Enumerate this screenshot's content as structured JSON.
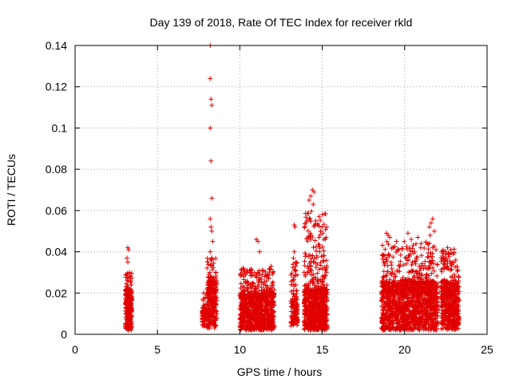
{
  "chart_data": {
    "type": "scatter",
    "title": "Day 139 of 2018, Rate Of TEC Index for receiver rkld",
    "xlabel": "GPS time / hours",
    "ylabel": "ROTI / TECUs",
    "xlim": [
      0,
      25
    ],
    "ylim": [
      0,
      0.14
    ],
    "xticks": [
      0,
      5,
      10,
      15,
      20,
      25
    ],
    "yticks": [
      0,
      0.02,
      0.04,
      0.06,
      0.08,
      0.1,
      0.12,
      0.14
    ],
    "xtick_labels": [
      "0",
      "5",
      "10",
      "15",
      "20",
      "25"
    ],
    "ytick_labels": [
      "0",
      "0.02",
      "0.04",
      "0.06",
      "0.08",
      "0.1",
      "0.12",
      "0.14"
    ],
    "grid": true,
    "marker": "+",
    "color": "#e00000",
    "clusters": [
      {
        "x": [
          3.05,
          3.45
        ],
        "dense": [
          0.002,
          0.022
        ],
        "mid": [
          0.015,
          0.03
        ],
        "n": 260,
        "outliers": [
          [
            3.2,
            0.042
          ],
          [
            3.25,
            0.041
          ],
          [
            3.15,
            0.037
          ],
          [
            3.2,
            0.035
          ],
          [
            3.3,
            0.03
          ],
          [
            3.1,
            0.029
          ]
        ]
      },
      {
        "x": [
          7.7,
          8.0
        ],
        "dense": [
          0.004,
          0.012
        ],
        "mid": [
          0.012,
          0.02
        ],
        "n": 70,
        "outliers": [
          [
            7.8,
            0.02
          ],
          [
            7.9,
            0.018
          ]
        ]
      },
      {
        "x": [
          8.0,
          8.6
        ],
        "dense": [
          0.003,
          0.026
        ],
        "mid": [
          0.02,
          0.038
        ],
        "n": 260,
        "outliers": [
          [
            8.2,
            0.14
          ],
          [
            8.2,
            0.124
          ],
          [
            8.25,
            0.114
          ],
          [
            8.3,
            0.111
          ],
          [
            8.2,
            0.1
          ],
          [
            8.25,
            0.084
          ],
          [
            8.3,
            0.066
          ],
          [
            8.2,
            0.056
          ],
          [
            8.25,
            0.052
          ],
          [
            8.3,
            0.05
          ],
          [
            8.35,
            0.045
          ],
          [
            8.2,
            0.04
          ],
          [
            8.3,
            0.036
          ]
        ]
      },
      {
        "x": [
          10.0,
          12.1
        ],
        "dense": [
          0.002,
          0.02
        ],
        "mid": [
          0.018,
          0.032
        ],
        "n": 900,
        "outliers": [
          [
            10.2,
            0.032
          ],
          [
            11.0,
            0.046
          ],
          [
            11.1,
            0.045
          ],
          [
            11.2,
            0.04
          ],
          [
            11.9,
            0.033
          ],
          [
            12.0,
            0.03
          ],
          [
            10.6,
            0.03
          ],
          [
            11.5,
            0.028
          ]
        ]
      },
      {
        "x": [
          13.1,
          13.5
        ],
        "dense": [
          0.004,
          0.02
        ],
        "mid": [
          0.02,
          0.035
        ],
        "n": 140,
        "outliers": [
          [
            13.3,
            0.053
          ],
          [
            13.35,
            0.052
          ],
          [
            13.3,
            0.04
          ],
          [
            13.25,
            0.037
          ],
          [
            13.4,
            0.035
          ]
        ]
      },
      {
        "x": [
          13.9,
          15.3
        ],
        "dense": [
          0.002,
          0.022
        ],
        "mid": [
          0.02,
          0.06
        ],
        "n": 820,
        "outliers": [
          [
            14.4,
            0.07
          ],
          [
            14.5,
            0.069
          ],
          [
            14.3,
            0.067
          ],
          [
            14.2,
            0.065
          ],
          [
            14.45,
            0.063
          ],
          [
            14.6,
            0.055
          ],
          [
            14.7,
            0.053
          ],
          [
            15.0,
            0.052
          ],
          [
            14.9,
            0.05
          ],
          [
            14.8,
            0.047
          ],
          [
            15.1,
            0.046
          ],
          [
            14.85,
            0.04
          ],
          [
            15.05,
            0.038
          ]
        ]
      },
      {
        "x": [
          18.6,
          22.0
        ],
        "dense": [
          0.002,
          0.026
        ],
        "mid": [
          0.02,
          0.045
        ],
        "n": 1500,
        "outliers": [
          [
            18.9,
            0.049
          ],
          [
            19.0,
            0.048
          ],
          [
            19.1,
            0.047
          ],
          [
            19.5,
            0.045
          ],
          [
            20.2,
            0.049
          ],
          [
            20.8,
            0.047
          ],
          [
            21.5,
            0.052
          ],
          [
            21.7,
            0.056
          ],
          [
            21.6,
            0.054
          ],
          [
            21.8,
            0.05
          ],
          [
            21.55,
            0.048
          ],
          [
            20.4,
            0.046
          ],
          [
            21.0,
            0.044
          ],
          [
            19.3,
            0.042
          ]
        ]
      },
      {
        "x": [
          22.2,
          23.3
        ],
        "dense": [
          0.002,
          0.026
        ],
        "mid": [
          0.02,
          0.042
        ],
        "n": 520,
        "outliers": [
          [
            22.6,
            0.042
          ],
          [
            22.8,
            0.041
          ],
          [
            22.5,
            0.04
          ],
          [
            22.7,
            0.039
          ],
          [
            23.1,
            0.036
          ],
          [
            23.0,
            0.035
          ],
          [
            22.4,
            0.037
          ]
        ]
      }
    ]
  }
}
